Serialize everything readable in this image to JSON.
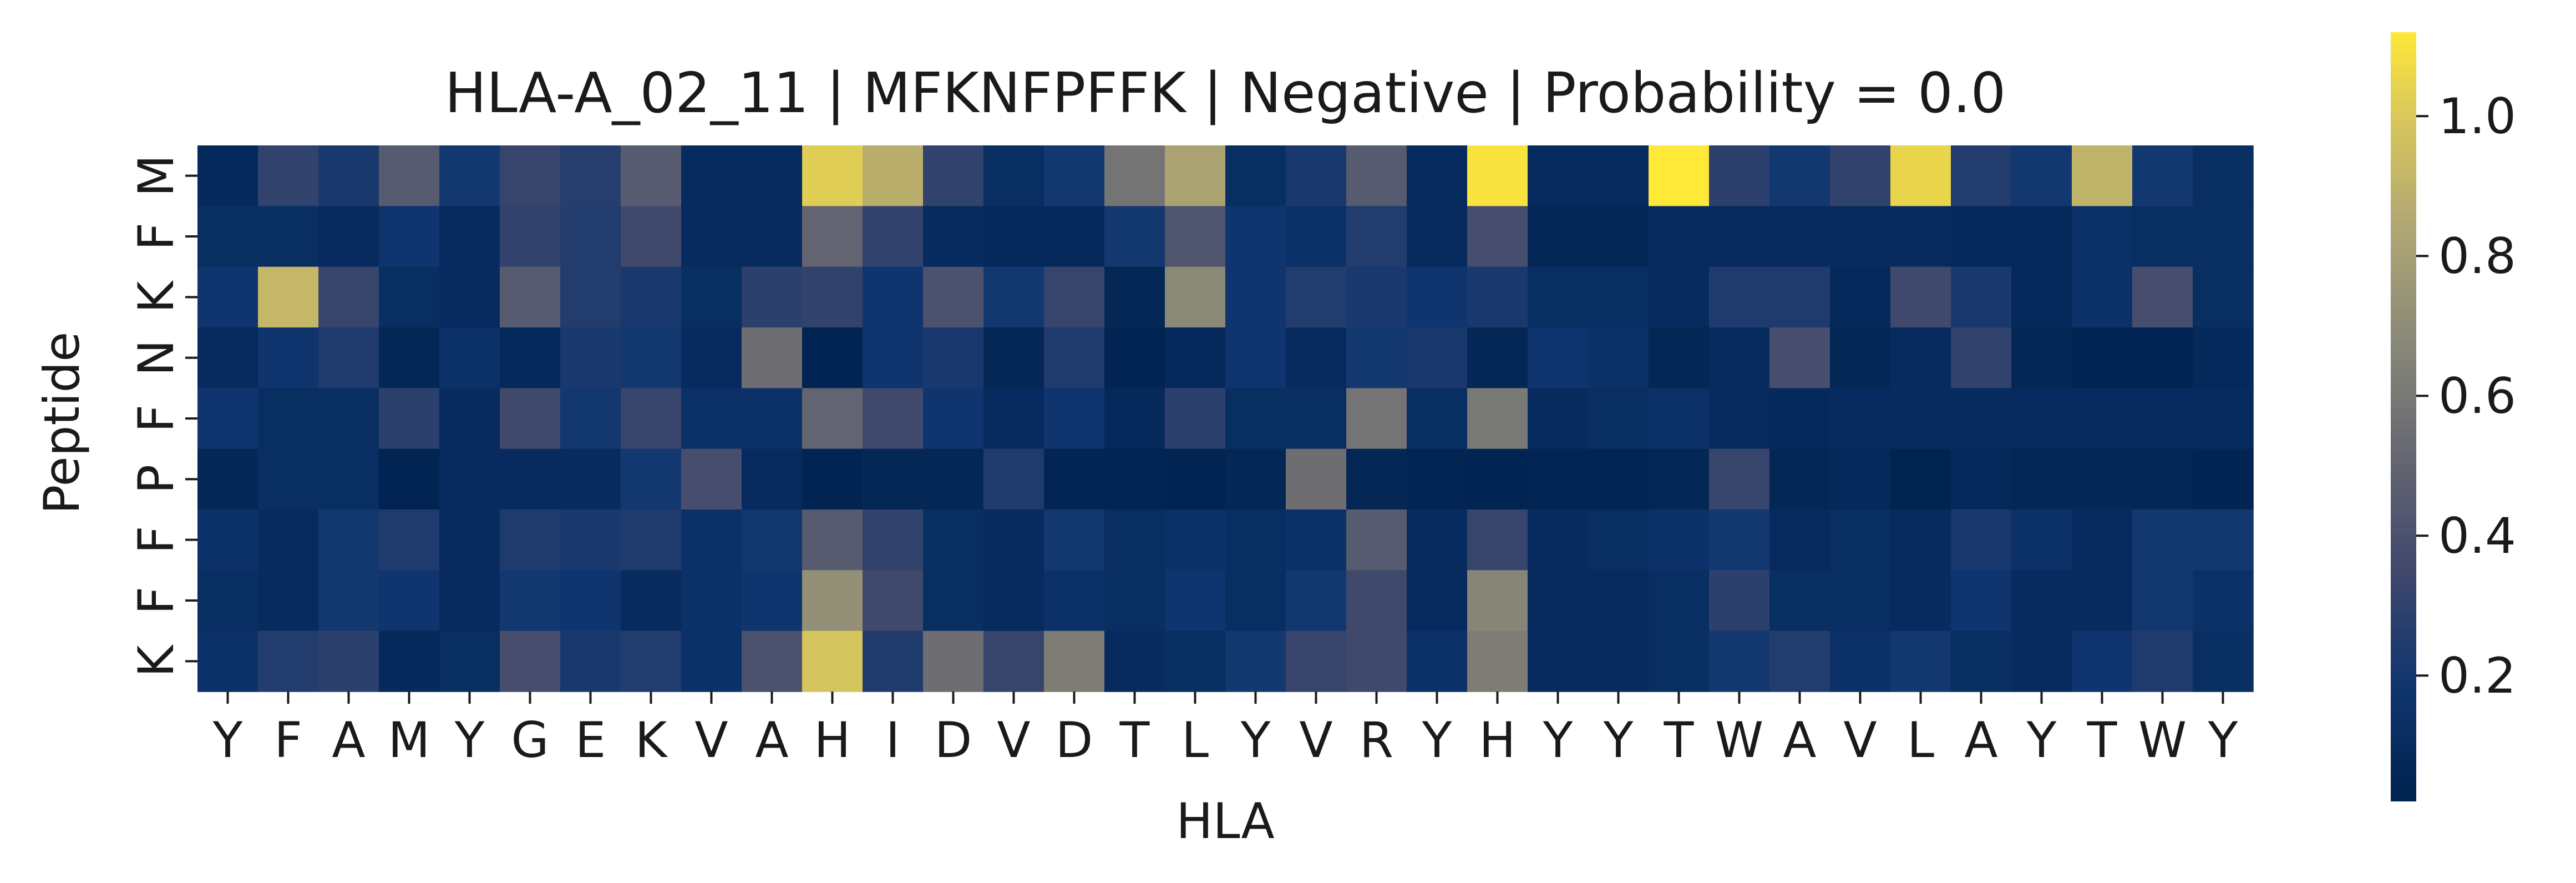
{
  "chart_data": {
    "type": "heatmap",
    "title": "HLA-A_02_11 | MFKNFPFFK | Negative | Probability = 0.0",
    "xlabel": "HLA",
    "ylabel": "Peptide",
    "x_labels": [
      "Y",
      "F",
      "A",
      "M",
      "Y",
      "G",
      "E",
      "K",
      "V",
      "A",
      "H",
      "I",
      "D",
      "V",
      "D",
      "T",
      "L",
      "Y",
      "V",
      "R",
      "Y",
      "H",
      "Y",
      "Y",
      "T",
      "W",
      "A",
      "V",
      "L",
      "A",
      "Y",
      "T",
      "W",
      "Y"
    ],
    "y_labels": [
      "M",
      "F",
      "K",
      "N",
      "F",
      "P",
      "F",
      "F",
      "K"
    ],
    "colormap": "cividis",
    "colorbar": {
      "range": [
        0.02,
        1.12
      ],
      "ticks": [
        0.2,
        0.4,
        0.6,
        0.8,
        1.0
      ],
      "tick_labels": [
        "0.2",
        "0.4",
        "0.6",
        "0.8",
        "1.0"
      ]
    },
    "values": [
      [
        0.08,
        0.3,
        0.22,
        0.45,
        0.2,
        0.32,
        0.26,
        0.45,
        0.1,
        0.1,
        1.02,
        0.88,
        0.3,
        0.12,
        0.2,
        0.58,
        0.82,
        0.12,
        0.22,
        0.45,
        0.1,
        1.1,
        0.1,
        0.1,
        1.12,
        0.28,
        0.2,
        0.3,
        1.05,
        0.25,
        0.2,
        0.9,
        0.2,
        0.12
      ],
      [
        0.12,
        0.12,
        0.1,
        0.18,
        0.1,
        0.3,
        0.25,
        0.35,
        0.1,
        0.1,
        0.5,
        0.3,
        0.1,
        0.08,
        0.08,
        0.2,
        0.42,
        0.18,
        0.15,
        0.25,
        0.1,
        0.38,
        0.06,
        0.06,
        0.1,
        0.1,
        0.1,
        0.1,
        0.1,
        0.08,
        0.08,
        0.15,
        0.12,
        0.12
      ],
      [
        0.18,
        0.92,
        0.32,
        0.12,
        0.1,
        0.45,
        0.25,
        0.22,
        0.12,
        0.28,
        0.3,
        0.18,
        0.4,
        0.2,
        0.32,
        0.06,
        0.68,
        0.18,
        0.25,
        0.22,
        0.18,
        0.22,
        0.12,
        0.12,
        0.1,
        0.24,
        0.24,
        0.08,
        0.35,
        0.22,
        0.08,
        0.15,
        0.38,
        0.12
      ],
      [
        0.1,
        0.18,
        0.24,
        0.06,
        0.15,
        0.08,
        0.22,
        0.2,
        0.1,
        0.55,
        0.04,
        0.18,
        0.22,
        0.06,
        0.24,
        0.04,
        0.08,
        0.18,
        0.1,
        0.2,
        0.22,
        0.06,
        0.18,
        0.15,
        0.06,
        0.1,
        0.38,
        0.06,
        0.1,
        0.3,
        0.06,
        0.04,
        0.04,
        0.08
      ],
      [
        0.18,
        0.12,
        0.12,
        0.28,
        0.1,
        0.35,
        0.2,
        0.32,
        0.15,
        0.15,
        0.5,
        0.35,
        0.18,
        0.1,
        0.18,
        0.08,
        0.28,
        0.12,
        0.12,
        0.58,
        0.12,
        0.6,
        0.1,
        0.12,
        0.15,
        0.1,
        0.08,
        0.1,
        0.1,
        0.1,
        0.1,
        0.1,
        0.1,
        0.1
      ],
      [
        0.06,
        0.12,
        0.12,
        0.04,
        0.1,
        0.1,
        0.1,
        0.2,
        0.38,
        0.1,
        0.04,
        0.06,
        0.06,
        0.24,
        0.05,
        0.05,
        0.04,
        0.06,
        0.55,
        0.06,
        0.05,
        0.04,
        0.05,
        0.05,
        0.06,
        0.32,
        0.06,
        0.08,
        0.03,
        0.08,
        0.06,
        0.06,
        0.06,
        0.04
      ],
      [
        0.15,
        0.1,
        0.2,
        0.24,
        0.1,
        0.24,
        0.22,
        0.24,
        0.15,
        0.2,
        0.45,
        0.3,
        0.12,
        0.1,
        0.2,
        0.12,
        0.15,
        0.12,
        0.15,
        0.45,
        0.1,
        0.32,
        0.1,
        0.12,
        0.15,
        0.2,
        0.1,
        0.12,
        0.1,
        0.22,
        0.15,
        0.1,
        0.2,
        0.2
      ],
      [
        0.12,
        0.1,
        0.2,
        0.18,
        0.1,
        0.2,
        0.18,
        0.1,
        0.15,
        0.18,
        0.72,
        0.35,
        0.12,
        0.1,
        0.15,
        0.12,
        0.18,
        0.12,
        0.2,
        0.35,
        0.1,
        0.66,
        0.1,
        0.1,
        0.12,
        0.28,
        0.12,
        0.12,
        0.1,
        0.18,
        0.1,
        0.1,
        0.2,
        0.15
      ],
      [
        0.15,
        0.25,
        0.28,
        0.08,
        0.12,
        0.38,
        0.22,
        0.25,
        0.15,
        0.4,
        0.98,
        0.24,
        0.55,
        0.32,
        0.62,
        0.1,
        0.12,
        0.2,
        0.32,
        0.35,
        0.15,
        0.62,
        0.1,
        0.1,
        0.12,
        0.2,
        0.25,
        0.15,
        0.2,
        0.12,
        0.1,
        0.18,
        0.24,
        0.12
      ]
    ]
  }
}
